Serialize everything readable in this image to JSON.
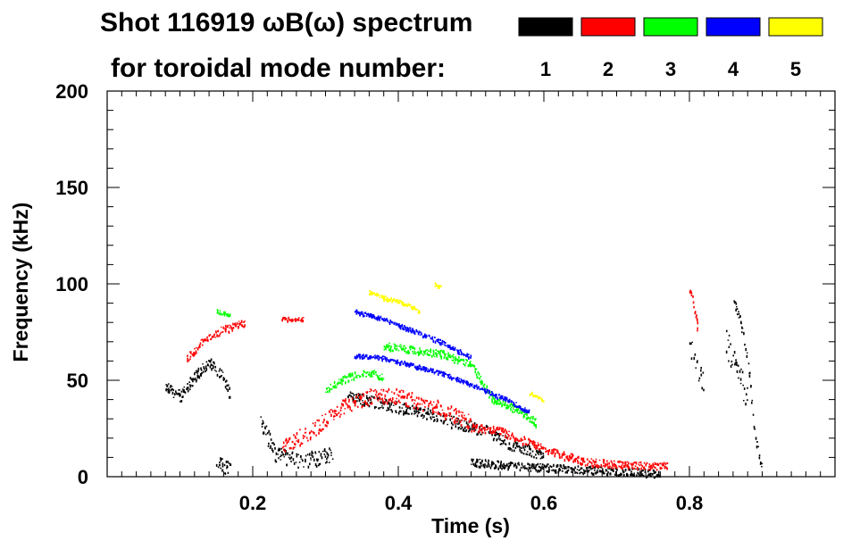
{
  "chart_data": {
    "type": "scatter",
    "title_line1": "Shot 116919 ωB(ω) spectrum",
    "title_line2": "for toroidal mode number:",
    "xlabel": "Time (s)",
    "ylabel": "Frequency (kHz)",
    "xlim": [
      0.0,
      1.0
    ],
    "ylim": [
      0,
      200
    ],
    "x_ticks": [
      {
        "value": 0.2,
        "label": "0.2"
      },
      {
        "value": 0.4,
        "label": "0.4"
      },
      {
        "value": 0.6,
        "label": "0.6"
      },
      {
        "value": 0.8,
        "label": "0.8"
      }
    ],
    "y_ticks": [
      {
        "value": 0,
        "label": "0"
      },
      {
        "value": 50,
        "label": "50"
      },
      {
        "value": 100,
        "label": "100"
      },
      {
        "value": 150,
        "label": "150"
      },
      {
        "value": 200,
        "label": "200"
      }
    ],
    "legend": [
      {
        "label": "1",
        "color": "#000000"
      },
      {
        "label": "2",
        "color": "#ff0000"
      },
      {
        "label": "3",
        "color": "#00ff00"
      },
      {
        "label": "4",
        "color": "#0000ff"
      },
      {
        "label": "5",
        "color": "#ffff00"
      }
    ],
    "series": [
      {
        "name": "n=1",
        "color": "#000000",
        "traces": [
          {
            "points": [
              [
                0.08,
                47
              ],
              [
                0.1,
                42
              ],
              [
                0.12,
                52
              ],
              [
                0.14,
                60
              ],
              [
                0.16,
                52
              ],
              [
                0.17,
                40
              ]
            ],
            "spread": 3
          },
          {
            "points": [
              [
                0.15,
                10
              ],
              [
                0.16,
                6
              ],
              [
                0.17,
                4
              ]
            ],
            "spread": 4
          },
          {
            "points": [
              [
                0.21,
                30
              ],
              [
                0.23,
                12
              ],
              [
                0.26,
                9
              ],
              [
                0.29,
                10
              ],
              [
                0.31,
                12
              ]
            ],
            "spread": 4
          },
          {
            "points": [
              [
                0.33,
                42
              ],
              [
                0.38,
                38
              ],
              [
                0.43,
                34
              ],
              [
                0.48,
                28
              ],
              [
                0.52,
                24
              ],
              [
                0.56,
                16
              ],
              [
                0.6,
                12
              ]
            ],
            "spread": 3
          },
          {
            "points": [
              [
                0.5,
                8
              ],
              [
                0.55,
                6
              ],
              [
                0.6,
                5
              ],
              [
                0.65,
                4
              ],
              [
                0.7,
                3
              ],
              [
                0.76,
                2
              ]
            ],
            "spread": 2
          },
          {
            "points": [
              [
                0.8,
                70
              ],
              [
                0.81,
                55
              ],
              [
                0.82,
                48
              ]
            ],
            "spread": 6
          },
          {
            "points": [
              [
                0.85,
                70
              ],
              [
                0.86,
                60
              ],
              [
                0.87,
                50
              ],
              [
                0.88,
                38
              ]
            ],
            "spread": 7
          },
          {
            "points": [
              [
                0.86,
                93
              ],
              [
                0.87,
                80
              ],
              [
                0.88,
                60
              ],
              [
                0.89,
                20
              ],
              [
                0.9,
                3
              ]
            ],
            "spread": 2
          }
        ]
      },
      {
        "name": "n=2",
        "color": "#ff0000",
        "traces": [
          {
            "points": [
              [
                0.11,
                62
              ],
              [
                0.13,
                70
              ],
              [
                0.15,
                75
              ],
              [
                0.17,
                78
              ],
              [
                0.19,
                80
              ]
            ],
            "spread": 2
          },
          {
            "points": [
              [
                0.24,
                82
              ],
              [
                0.25,
                82
              ],
              [
                0.27,
                82
              ]
            ],
            "spread": 1
          },
          {
            "points": [
              [
                0.24,
                16
              ],
              [
                0.28,
                24
              ],
              [
                0.32,
                36
              ],
              [
                0.36,
                42
              ],
              [
                0.4,
                42
              ],
              [
                0.44,
                38
              ],
              [
                0.48,
                32
              ],
              [
                0.5,
                28
              ]
            ],
            "spread": 4
          },
          {
            "points": [
              [
                0.5,
                26
              ],
              [
                0.54,
                24
              ],
              [
                0.58,
                18
              ],
              [
                0.62,
                12
              ],
              [
                0.66,
                8
              ],
              [
                0.72,
                6
              ],
              [
                0.77,
                6
              ]
            ],
            "spread": 2
          },
          {
            "points": [
              [
                0.8,
                98
              ],
              [
                0.81,
                82
              ],
              [
                0.81,
                76
              ]
            ],
            "spread": 2
          }
        ]
      },
      {
        "name": "n=3",
        "color": "#00ff00",
        "traces": [
          {
            "points": [
              [
                0.15,
                86
              ],
              [
                0.17,
                84
              ]
            ],
            "spread": 1
          },
          {
            "points": [
              [
                0.3,
                46
              ],
              [
                0.33,
                52
              ],
              [
                0.36,
                54
              ],
              [
                0.38,
                52
              ]
            ],
            "spread": 2
          },
          {
            "points": [
              [
                0.38,
                68
              ],
              [
                0.42,
                66
              ],
              [
                0.46,
                64
              ],
              [
                0.5,
                58
              ],
              [
                0.53,
                40
              ],
              [
                0.57,
                34
              ],
              [
                0.59,
                28
              ]
            ],
            "spread": 2
          }
        ]
      },
      {
        "name": "n=4",
        "color": "#0000ff",
        "traces": [
          {
            "points": [
              [
                0.34,
                86
              ],
              [
                0.38,
                82
              ],
              [
                0.42,
                76
              ],
              [
                0.46,
                70
              ],
              [
                0.5,
                62
              ]
            ],
            "spread": 1
          },
          {
            "points": [
              [
                0.34,
                63
              ],
              [
                0.38,
                62
              ],
              [
                0.42,
                58
              ],
              [
                0.46,
                54
              ],
              [
                0.5,
                48
              ],
              [
                0.55,
                40
              ],
              [
                0.58,
                34
              ]
            ],
            "spread": 1
          }
        ]
      },
      {
        "name": "n=5",
        "color": "#ffff00",
        "traces": [
          {
            "points": [
              [
                0.36,
                96
              ],
              [
                0.38,
                93
              ],
              [
                0.41,
                90
              ],
              [
                0.43,
                86
              ]
            ],
            "spread": 1
          },
          {
            "points": [
              [
                0.45,
                100
              ],
              [
                0.46,
                98
              ]
            ],
            "spread": 1
          },
          {
            "points": [
              [
                0.58,
                44
              ],
              [
                0.6,
                40
              ]
            ],
            "spread": 1
          }
        ]
      }
    ]
  }
}
